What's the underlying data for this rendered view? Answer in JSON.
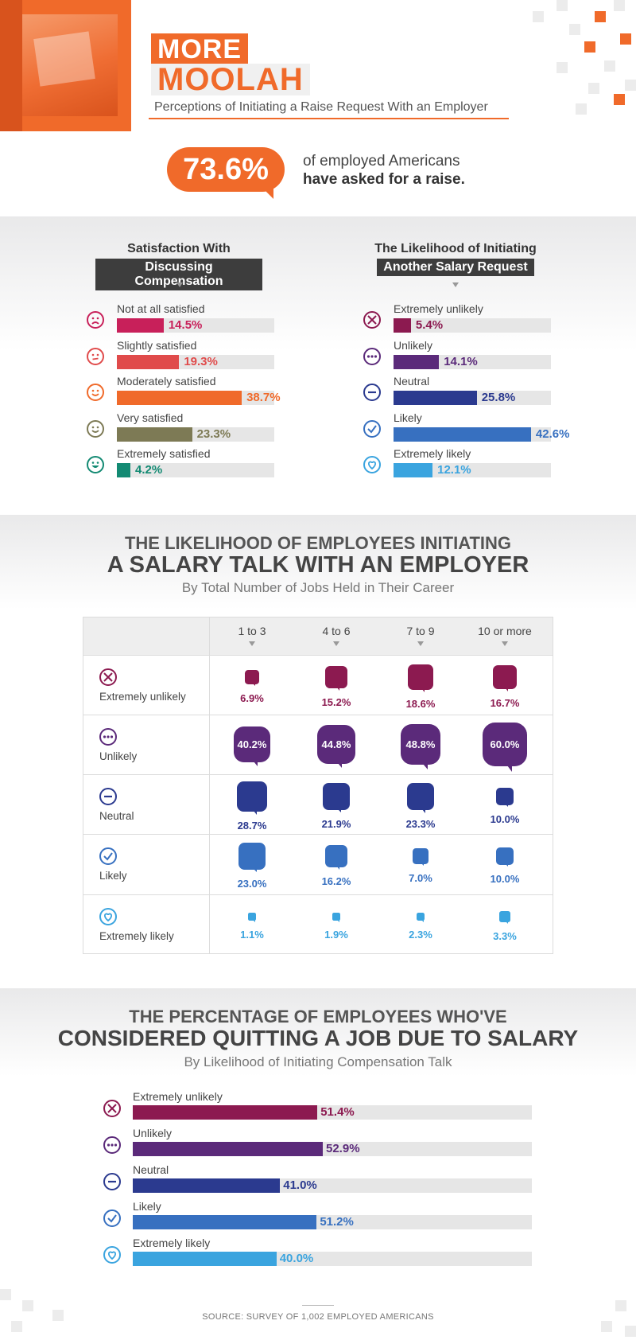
{
  "header": {
    "title_line1": "MORE",
    "title_line2": "MOOLAH",
    "subtitle": "Perceptions of Initiating a Raise Request With an Employer",
    "headline_stat": "73.6%",
    "stat_text_line1": "of employed Americans",
    "stat_text_line2": "have asked for a raise."
  },
  "colors": {
    "orange": "#f06a2a",
    "maroon": "#8c1a50",
    "purple": "#5b2a7a",
    "navy": "#2b3a8f",
    "blue": "#3770c0",
    "light_blue": "#3aa4df",
    "sat_not": "#c8205a",
    "sat_slight": "#e04b4b",
    "sat_moderate": "#f06a2a",
    "sat_very": "#7d7a55",
    "sat_extreme": "#138a73"
  },
  "chart_data": [
    {
      "type": "bar",
      "orientation": "horizontal",
      "title_line1": "Satisfaction With",
      "title_line2": "Discussing Compensation",
      "categories": [
        "Not at all satisfied",
        "Slightly satisfied",
        "Moderately satisfied",
        "Very satisfied",
        "Extremely satisfied"
      ],
      "values": [
        14.5,
        19.3,
        38.7,
        23.3,
        4.2
      ],
      "labels": [
        "14.5%",
        "19.3%",
        "38.7%",
        "23.3%",
        "4.2%"
      ],
      "icons": [
        "sad-face-icon",
        "neutral-face-icon",
        "smile-face-icon",
        "smile-face-icon",
        "grin-face-icon"
      ],
      "xlim": [
        0,
        100
      ]
    },
    {
      "type": "bar",
      "orientation": "horizontal",
      "title_line1": "The Likelihood of Initiating",
      "title_line2": "Another Salary Request",
      "categories": [
        "Extremely unlikely",
        "Unlikely",
        "Neutral",
        "Likely",
        "Extremely likely"
      ],
      "values": [
        5.4,
        14.1,
        25.8,
        42.6,
        12.1
      ],
      "labels": [
        "5.4%",
        "14.1%",
        "25.8%",
        "42.6%",
        "12.1%"
      ],
      "icons": [
        "x-circle-icon",
        "dots-circle-icon",
        "minus-circle-icon",
        "check-circle-icon",
        "heart-circle-icon"
      ],
      "xlim": [
        0,
        100
      ]
    },
    {
      "type": "table",
      "title_line1": "THE LIKELIHOOD OF EMPLOYEES INITIATING",
      "title_line2": "A SALARY TALK WITH AN EMPLOYER",
      "subtitle": "By Total Number of Jobs Held in Their Career",
      "columns": [
        "1 to 3",
        "4 to 6",
        "7 to 9",
        "10 or more"
      ],
      "rows": [
        "Extremely unlikely",
        "Unlikely",
        "Neutral",
        "Likely",
        "Extremely likely"
      ],
      "values": [
        [
          6.9,
          15.2,
          18.6,
          16.7
        ],
        [
          40.2,
          44.8,
          48.8,
          60.0
        ],
        [
          28.7,
          21.9,
          23.3,
          10.0
        ],
        [
          23.0,
          16.2,
          7.0,
          10.0
        ],
        [
          1.1,
          1.9,
          2.3,
          3.3
        ]
      ],
      "labels": [
        [
          "6.9%",
          "15.2%",
          "18.6%",
          "16.7%"
        ],
        [
          "40.2%",
          "44.8%",
          "48.8%",
          "60.0%"
        ],
        [
          "28.7%",
          "21.9%",
          "23.3%",
          "10.0%"
        ],
        [
          "23.0%",
          "16.2%",
          "7.0%",
          "10.0%"
        ],
        [
          "1.1%",
          "1.9%",
          "2.3%",
          "3.3%"
        ]
      ]
    },
    {
      "type": "bar",
      "orientation": "horizontal",
      "title_line1": "THE PERCENTAGE OF EMPLOYEES WHO'VE",
      "title_line2": "CONSIDERED QUITTING A JOB DUE TO SALARY",
      "subtitle": "By Likelihood of Initiating Compensation Talk",
      "categories": [
        "Extremely unlikely",
        "Unlikely",
        "Neutral",
        "Likely",
        "Extremely likely"
      ],
      "values": [
        51.4,
        52.9,
        41.0,
        51.2,
        40.0
      ],
      "labels": [
        "51.4%",
        "52.9%",
        "41.0%",
        "51.2%",
        "40.0%"
      ],
      "xlim": [
        0,
        100
      ]
    }
  ],
  "footer": {
    "source": "SOURCE: SURVEY OF 1,002 EMPLOYED AMERICANS"
  }
}
